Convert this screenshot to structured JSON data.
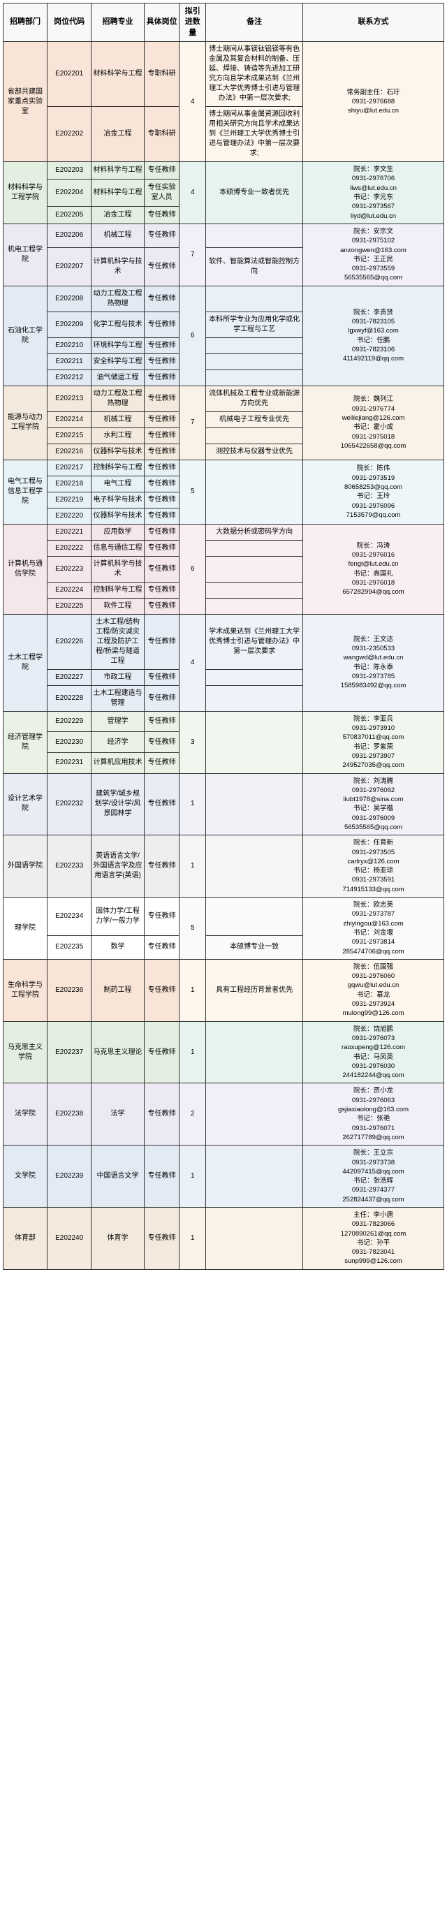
{
  "headers": [
    "招聘部门",
    "岗位代码",
    "招聘专业",
    "具体岗位",
    "拟引进数量",
    "备注",
    "联系方式"
  ],
  "bg": {
    "peach": "#f9e5d7",
    "cream": "#fdf6ed",
    "green": "#e3efe0",
    "mint": "#e6f3ef",
    "lav": "#ece8f4",
    "lil": "#f2eff8",
    "blue": "#e2eaf4",
    "sky": "#eaf0f8",
    "tan": "#f3e9dc",
    "sand": "#f8f2e8",
    "ice": "#e6f2f6",
    "haze": "#eef6f9",
    "rose": "#f5e6ea",
    "blush": "#f9eff2",
    "bluep": "#e6edf6",
    "bluel": "#eff3f9",
    "greenl": "#e9f2e5",
    "mintl": "#f1f7ee",
    "peri": "#e9ebf5",
    "peril": "#f1f2f8",
    "gray": "#eeeeee",
    "lgray": "#f5f5f5",
    "white": "#ffffff",
    "plain": "#fafafa"
  },
  "rows": [
    {
      "dept": "省部共建国家重点实验室",
      "deptSpan": 2,
      "deptBg": "peach",
      "code": "E202201",
      "major": "材料科学与工程",
      "post": "专职科研",
      "qty": "4",
      "qtySpan": 2,
      "note": "博士期间从事镁钛铝镁等有色金属及其复合材料的制备、压延、焊接、铸造等先进加工研究方向且学术成果达到《兰州理工大学优秀博士引进与管理办法》中第一层次要求;",
      "noteBg": "cream",
      "contact": "常务副主任：石玗\n0931-2976688\nshiyu@lut.edu.cn",
      "contactSpan": 2,
      "contactBg": "cream"
    },
    {
      "code": "E202202",
      "major": "冶金工程",
      "post": "专职科研",
      "note": "博士期间从事金属资源回收利用相关研究方向且学术成果达到《兰州理工大学优秀博士引进与管理办法》中第一层次要求;",
      "noteBg": "cream",
      "rowBg": "peach"
    },
    {
      "dept": "材料科学与工程学院",
      "deptSpan": 3,
      "deptBg": "green",
      "code": "E202203",
      "major": "材料科学与工程",
      "post": "专任教师",
      "qty": "4",
      "qtySpan": 3,
      "note": "本硕博专业一致者优先",
      "noteSpan": 3,
      "noteBg": "mint",
      "contact": "院长：李文生\n0931-2976706\nliws@lut.edu.cn\n书记：李元东\n0931-2973567\nliyd@lut.edu.cn",
      "contactSpan": 3,
      "contactBg": "mint"
    },
    {
      "code": "E202204",
      "major": "材料科学与工程",
      "post": "专任实验室人员",
      "rowBg": "green"
    },
    {
      "code": "E202205",
      "major": "冶金工程",
      "post": "专任教师",
      "rowBg": "green"
    },
    {
      "dept": "机电工程学院",
      "deptSpan": 2,
      "deptBg": "lav",
      "code": "E202206",
      "major": "机械工程",
      "post": "专任教师",
      "qty": "7",
      "qtySpan": 2,
      "note": "",
      "noteBg": "lil",
      "contact": "院长：安宗文\n0931-2975102\nanzongwen@163.com\n书记：王正民\n0931-2973559\n56535565@qq.com",
      "contactSpan": 2,
      "contactBg": "lil"
    },
    {
      "code": "E202207",
      "major": "计算机科学与技术",
      "post": "专任教师",
      "note": "软件、智能算法或智能控制方向",
      "noteBg": "lil",
      "rowBg": "lav"
    },
    {
      "dept": "石油化工学院",
      "deptSpan": 5,
      "deptBg": "blue",
      "code": "E202208",
      "major": "动力工程及工程热物理",
      "post": "专任教师",
      "qty": "6",
      "qtySpan": 5,
      "note": "",
      "noteBg": "sky",
      "contact": "院长：李贵贤\n0931-7823105\nlgxwyf@163.com\n书记：任鹏\n0931-7823106\n411492119@qq.com",
      "contactSpan": 5,
      "contactBg": "sky"
    },
    {
      "code": "E202209",
      "major": "化学工程与技术",
      "post": "专任教师",
      "note": "本科所学专业为应用化学或化学工程与工艺",
      "noteBg": "sky",
      "rowBg": "blue"
    },
    {
      "code": "E202210",
      "major": "环境科学与工程",
      "post": "专任教师",
      "note": "",
      "noteBg": "sky",
      "rowBg": "blue"
    },
    {
      "code": "E202211",
      "major": "安全科学与工程",
      "post": "专任教师",
      "note": "",
      "noteBg": "sky",
      "rowBg": "blue"
    },
    {
      "code": "E202212",
      "major": "油气储运工程",
      "post": "专任教师",
      "note": "",
      "noteBg": "sky",
      "rowBg": "blue"
    },
    {
      "dept": "能源与动力工程学院",
      "deptSpan": 4,
      "deptBg": "tan",
      "code": "E202213",
      "major": "动力工程及工程热物理",
      "post": "专任教师",
      "qty": "7",
      "qtySpan": 4,
      "note": "流体机械及工程专业或新能源方向优先",
      "noteBg": "sand",
      "contact": "院长：魏列江\n0931-2976774\nweiliejiang@126.com\n书记：霍小成\n0931-2975018\n1065422658@qq.com",
      "contactSpan": 4,
      "contactBg": "sand"
    },
    {
      "code": "E202214",
      "major": "机械工程",
      "post": "专任教师",
      "note": "机械电子工程专业优先",
      "noteBg": "sand",
      "rowBg": "tan"
    },
    {
      "code": "E202215",
      "major": "水利工程",
      "post": "专任教师",
      "note": "",
      "noteBg": "sand",
      "rowBg": "tan"
    },
    {
      "code": "E202216",
      "major": "仪器科学与技术",
      "post": "专任教师",
      "note": "测控技术与仪器专业优先",
      "noteBg": "sand",
      "rowBg": "tan"
    },
    {
      "dept": "电气工程与信息工程学院",
      "deptSpan": 4,
      "deptBg": "ice",
      "code": "E202217",
      "major": "控制科学与工程",
      "post": "专任教师",
      "qty": "5",
      "qtySpan": 4,
      "note": "",
      "noteSpan": 4,
      "noteBg": "haze",
      "contact": "院长：陈伟\n0931-2973519\n80658253@qq.com\n书记：王玲\n0931-2976096\n7153579@qq.com",
      "contactSpan": 4,
      "contactBg": "haze"
    },
    {
      "code": "E202218",
      "major": "电气工程",
      "post": "专任教师",
      "rowBg": "ice"
    },
    {
      "code": "E202219",
      "major": "电子科学与技术",
      "post": "专任教师",
      "rowBg": "ice"
    },
    {
      "code": "E202220",
      "major": "仪器科学与技术",
      "post": "专任教师",
      "rowBg": "ice"
    },
    {
      "dept": "计算机与通信学院",
      "deptSpan": 5,
      "deptBg": "rose",
      "code": "E202221",
      "major": "应用数学",
      "post": "专任教师",
      "qty": "6",
      "qtySpan": 5,
      "note": "大数据分析或密码学方向",
      "noteBg": "blush",
      "contact": "院长：冯涛\n0931-2976016\nfengt@lut.edu.cn\n书记：高国礼\n0931-2976018\n657282994@qq.com",
      "contactSpan": 5,
      "contactBg": "blush"
    },
    {
      "code": "E202222",
      "major": "信息与通信工程",
      "post": "专任教师",
      "note": "",
      "noteBg": "blush",
      "rowBg": "rose"
    },
    {
      "code": "E202223",
      "major": "计算机科学与技术",
      "post": "专任教师",
      "note": "",
      "noteBg": "blush",
      "rowBg": "rose"
    },
    {
      "code": "E202224",
      "major": "控制科学与工程",
      "post": "专任教师",
      "note": "",
      "noteBg": "blush",
      "rowBg": "rose"
    },
    {
      "code": "E202225",
      "major": "软件工程",
      "post": "专任教师",
      "note": "",
      "noteBg": "blush",
      "rowBg": "rose"
    },
    {
      "dept": "土木工程学院",
      "deptSpan": 3,
      "deptBg": "bluep",
      "code": "E202226",
      "major": "土木工程/结构工程/防灾减灾工程及防护工程/桥梁与隧道工程",
      "post": "专任教师",
      "qty": "4",
      "qtySpan": 3,
      "note": "学术成果达到《兰州理工大学优秀博士引进与管理办法》中第一层次要求",
      "noteBg": "bluel",
      "contact": "院长：王文达\n0931-2350533\nwangwd@lut.edu.cn\n书记：陈永泰\n0931-2973785\n1585983492@qq.com",
      "contactSpan": 3,
      "contactBg": "bluel"
    },
    {
      "code": "E202227",
      "major": "市政工程",
      "post": "专任教师",
      "note": "",
      "noteBg": "bluel",
      "rowBg": "bluep"
    },
    {
      "code": "E202228",
      "major": "土木工程建造与管理",
      "post": "专任教师",
      "note": "",
      "noteBg": "bluel",
      "rowBg": "bluep"
    },
    {
      "dept": "经济管理学院",
      "deptSpan": 3,
      "deptBg": "greenl",
      "code": "E202229",
      "major": "管理学",
      "post": "专任教师",
      "qty": "3",
      "qtySpan": 3,
      "note": "",
      "noteSpan": 3,
      "noteBg": "mintl",
      "contact": "院长：李亚兵\n0931-2973910\n570837011@qq.com\n书记：罗紫荣\n0931-2973907\n249527035@qq.com",
      "contactSpan": 3,
      "contactBg": "mintl"
    },
    {
      "code": "E202230",
      "major": "经济学",
      "post": "专任教师",
      "rowBg": "greenl"
    },
    {
      "code": "E202231",
      "major": "计算机应用技术",
      "post": "专任教师",
      "rowBg": "greenl"
    },
    {
      "dept": "设计艺术学院",
      "deptSpan": 1,
      "deptBg": "peri",
      "code": "E202232",
      "major": "建筑学/城乡规划学/设计学/风景园林学",
      "post": "专任教师",
      "qty": "1",
      "note": "",
      "noteBg": "peril",
      "contact": "院长：刘涛腾\n0931-2976062\nliubt1978@sina.com\n书记：吴学楷\n0931-2976009\n56535565@qq.com",
      "contactBg": "peril"
    },
    {
      "dept": "外国语学院",
      "deptSpan": 1,
      "deptBg": "gray",
      "code": "E202233",
      "major": "英语语言文学/外国语言学及应用语言学(英语)",
      "post": "专任教师",
      "qty": "1",
      "note": "",
      "noteBg": "lgray",
      "contact": "院长：任育新\n0931-2973505\ncarlryx@126.com\n书记：杨亚琼\n0931-2973591\n714915133@qq.com",
      "contactBg": "lgray"
    },
    {
      "dept": "理学院",
      "deptSpan": 2,
      "deptBg": "white",
      "code": "E202234",
      "major": "固体力学/工程力学/一般力学",
      "post": "专任教师",
      "qty": "5",
      "qtySpan": 2,
      "note": "",
      "noteBg": "plain",
      "contact": "院长：欧志英\n0931-2973787\nzhiyingou@163.com\n书记：刘金堰\n0931-2973814\n285474706@qq.com",
      "contactSpan": 2,
      "contactBg": "plain"
    },
    {
      "code": "E202235",
      "major": "数学",
      "post": "专任教师",
      "note": "本硕博专业一致",
      "noteBg": "plain",
      "rowBg": "white"
    },
    {
      "dept": "生命科学与工程学院",
      "deptSpan": 1,
      "deptBg": "peach",
      "code": "E202236",
      "major": "制药工程",
      "post": "专任教师",
      "qty": "1",
      "note": "具有工程经历背景者优先",
      "noteBg": "cream",
      "contact": "院长：伍国强\n0931-2976060\ngqwu@lut.edu.cn\n书记：慕龙\n0931-2973924\nmulong99@126.com",
      "contactBg": "cream"
    },
    {
      "dept": "马克思主义学院",
      "deptSpan": 1,
      "deptBg": "green",
      "code": "E202237",
      "major": "马克思主义理论",
      "post": "专任教师",
      "qty": "1",
      "note": "",
      "noteBg": "mint",
      "contact": "院长：饶旭鹏\n0931-2976073\nraoxupeng@126.com\n书记：马凤英\n0931-2976030\n244182244@qq.com",
      "contactBg": "mint"
    },
    {
      "dept": "法学院",
      "deptSpan": 1,
      "deptBg": "lav",
      "code": "E202238",
      "major": "法学",
      "post": "专任教师",
      "qty": "2",
      "note": "",
      "noteBg": "lil",
      "contact": "院长：贾小龙\n0931-2976063\ngsjiaxiaolong@163.com\n书记：张艳\n0931-2976071\n262717789@qq.com",
      "contactBg": "lil"
    },
    {
      "dept": "文学院",
      "deptSpan": 1,
      "deptBg": "blue",
      "code": "E202239",
      "major": "中国语言文学",
      "post": "专任教师",
      "qty": "1",
      "note": "",
      "noteBg": "sky",
      "contact": "院长：王立宗\n0931-2973738\n442097415@qq.com\n书记：张浩辉\n0931-2974377\n252824437@qq.com",
      "contactBg": "sky"
    },
    {
      "dept": "体育部",
      "deptSpan": 1,
      "deptBg": "tan",
      "code": "E202240",
      "major": "体育学",
      "post": "专任教师",
      "qty": "1",
      "note": "",
      "noteBg": "sand",
      "contact": "主任：李小唐\n0931-7823066\n1270890261@qq.com\n书记：孙平\n0931-7823041\nsunp999@126.com",
      "contactBg": "sand"
    }
  ]
}
